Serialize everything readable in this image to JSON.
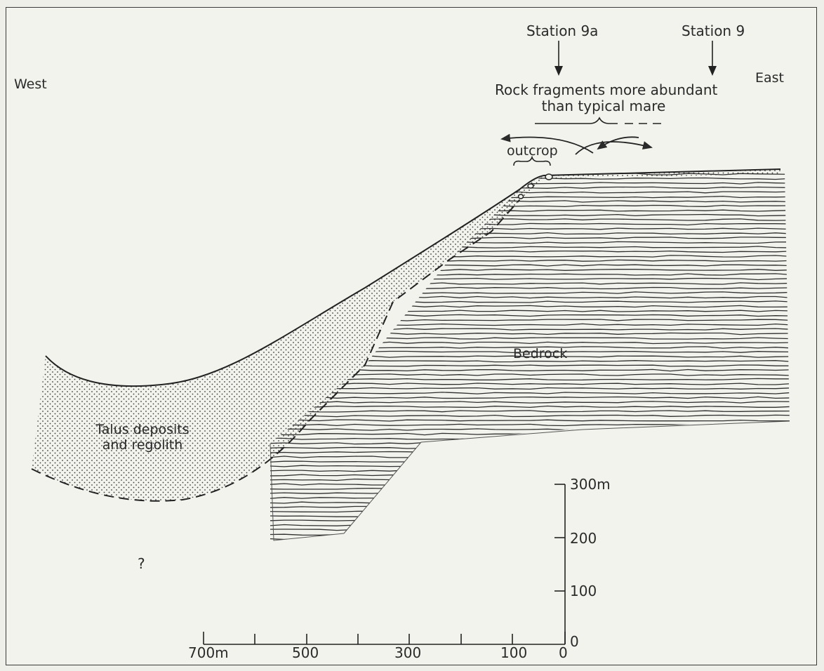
{
  "labels": {
    "west": "West",
    "east": "East",
    "station_9a": "Station 9a",
    "station_9": "Station 9",
    "rock_fragments_line1": "Rock fragments more abundant",
    "rock_fragments_line2": "than typical mare",
    "outcrop": "outcrop",
    "bedrock": "Bedrock",
    "talus_line1": "Talus deposits",
    "talus_line2": "and regolith",
    "unknown": "?"
  },
  "horizontal_scale": {
    "ticks": [
      "700m",
      "500",
      "300",
      "100",
      "0"
    ]
  },
  "vertical_scale": {
    "ticks": [
      "300m",
      "200",
      "100",
      "0"
    ]
  },
  "colors": {
    "ink": "#2a2a2a",
    "paper": "#f3f3ee"
  }
}
